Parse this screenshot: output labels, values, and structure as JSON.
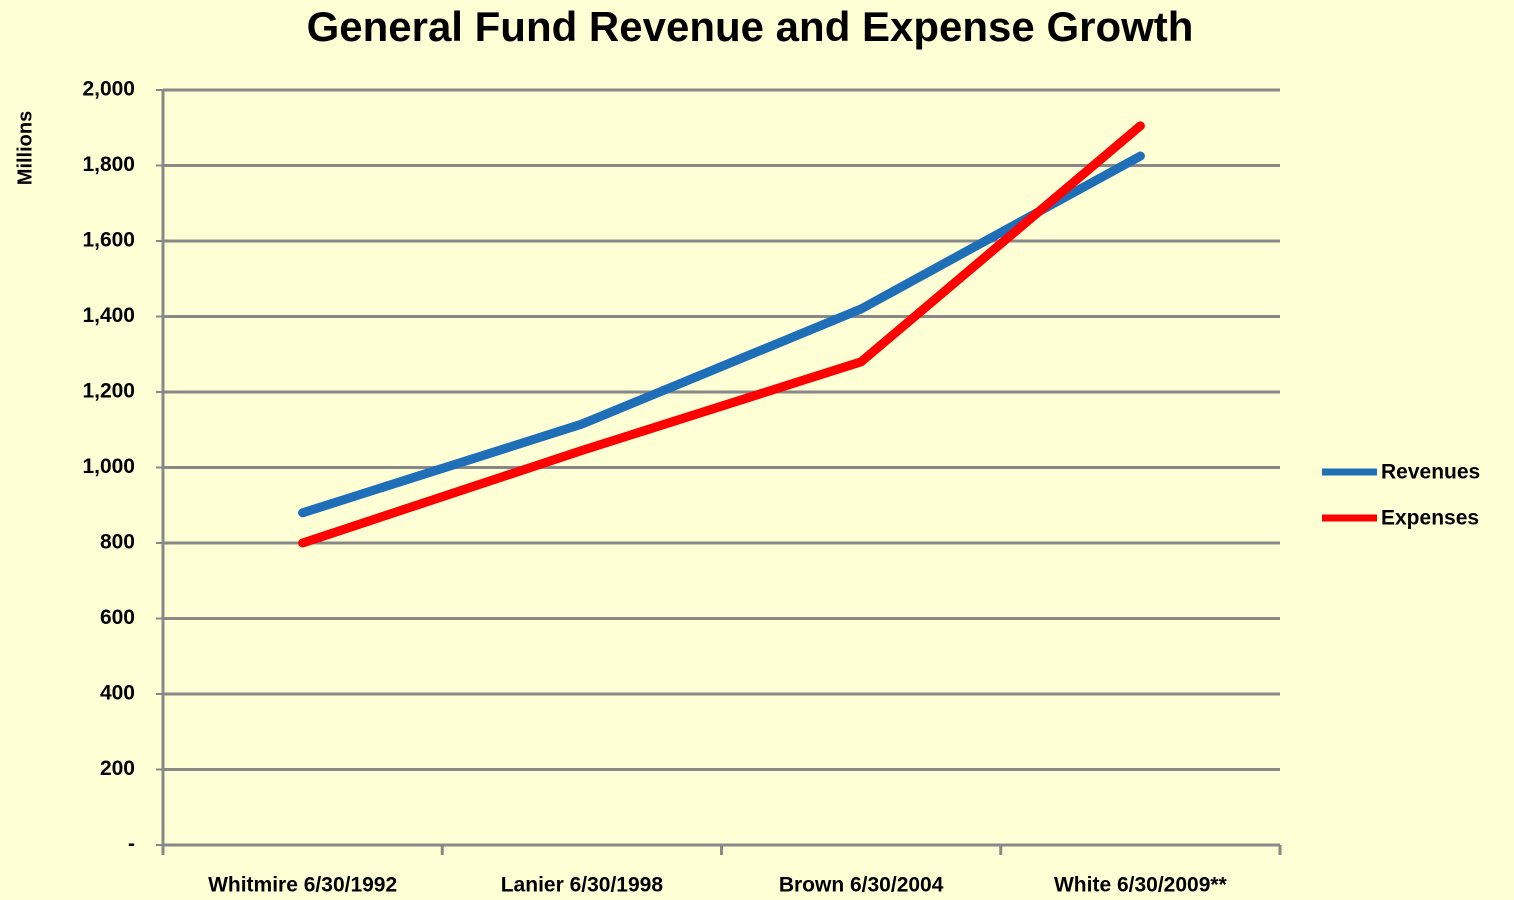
{
  "chart_data": {
    "type": "line",
    "title": "General Fund Revenue and Expense Growth",
    "y_label": "Millions",
    "categories": [
      "Whitmire 6/30/1992",
      "Lanier 6/30/1998",
      "Brown 6/30/2004",
      "White 6/30/2009**"
    ],
    "series": [
      {
        "name": "Revenues",
        "color": "#1f6fb8",
        "values": [
          880,
          1115,
          1420,
          1825
        ]
      },
      {
        "name": "Expenses",
        "color": "#ff0000",
        "values": [
          800,
          1045,
          1280,
          1905
        ]
      }
    ],
    "ylim": [
      0,
      2000
    ],
    "yticks": [
      {
        "value": 0,
        "label": "-"
      },
      200,
      400,
      600,
      800,
      {
        "value": 1000,
        "label": "1,000"
      },
      {
        "value": 1200,
        "label": "1,200"
      },
      {
        "value": 1400,
        "label": "1,400"
      },
      {
        "value": 1600,
        "label": "1,600"
      },
      {
        "value": 1800,
        "label": "1,800"
      },
      {
        "value": 2000,
        "label": "2,000"
      }
    ],
    "grid": true,
    "legend": "right"
  }
}
